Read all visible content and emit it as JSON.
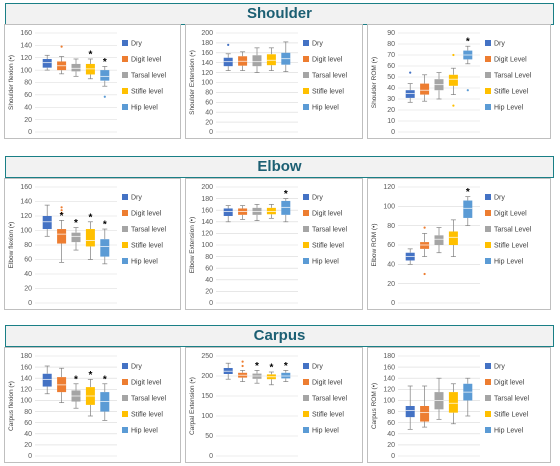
{
  "colors": {
    "dry": "#4472c4",
    "digit": "#ed7d31",
    "tarsal": "#a5a5a5",
    "stifle": "#ffc000",
    "hip": "#5b9bd5",
    "banner_text": "#1c5f73",
    "banner_border": "#1a7f86",
    "star": "#000000"
  },
  "sections": [
    {
      "title": "Shoulder",
      "charts": [
        {
          "type": "box",
          "ylabel": "Shoulder flexion (•)",
          "ylim": [
            0,
            160
          ],
          "ticks": [
            0,
            20,
            40,
            60,
            80,
            100,
            120,
            140,
            160
          ],
          "legend": [
            "Dry",
            "Digit level",
            "Tarsal level",
            "Stifle level",
            "Hip level"
          ],
          "series": [
            {
              "q1": 104,
              "median": 112,
              "q3": 118,
              "min": 100,
              "max": 124,
              "outliers": [],
              "star": false
            },
            {
              "q1": 100,
              "median": 107,
              "q3": 114,
              "min": 94,
              "max": 122,
              "outliers": [
                138
              ],
              "star": false
            },
            {
              "q1": 98,
              "median": 103,
              "q3": 110,
              "min": 90,
              "max": 118,
              "outliers": [],
              "star": false
            },
            {
              "q1": 93,
              "median": 102,
              "q3": 110,
              "min": 86,
              "max": 118,
              "outliers": [],
              "star": true
            },
            {
              "q1": 83,
              "median": 90,
              "q3": 100,
              "min": 74,
              "max": 106,
              "outliers": [
                57
              ],
              "star": true
            }
          ]
        },
        {
          "type": "box",
          "ylabel": "Shoulder Extension (•)",
          "ylim": [
            0,
            200
          ],
          "ticks": [
            0,
            20,
            40,
            60,
            80,
            100,
            120,
            140,
            160,
            180,
            200
          ],
          "legend": [
            "Dry",
            "Digit level",
            "Tarsal level",
            "Stifle level",
            "Hip level"
          ],
          "series": [
            {
              "q1": 133,
              "median": 142,
              "q3": 150,
              "min": 124,
              "max": 158,
              "outliers": [
                176
              ],
              "star": false
            },
            {
              "q1": 134,
              "median": 143,
              "q3": 153,
              "min": 124,
              "max": 162,
              "outliers": [],
              "star": false
            },
            {
              "q1": 133,
              "median": 142,
              "q3": 155,
              "min": 120,
              "max": 170,
              "outliers": [],
              "star": false
            },
            {
              "q1": 135,
              "median": 145,
              "q3": 157,
              "min": 124,
              "max": 170,
              "outliers": [],
              "star": false
            },
            {
              "q1": 136,
              "median": 148,
              "q3": 160,
              "min": 122,
              "max": 182,
              "outliers": [],
              "star": false
            }
          ]
        },
        {
          "type": "box",
          "ylabel": "Shoulder ROM (•)",
          "ylim": [
            0,
            90
          ],
          "ticks": [
            0,
            10,
            20,
            30,
            40,
            50,
            60,
            70,
            80,
            90
          ],
          "legend": [
            "Dry",
            "Digit Level",
            "Tarsal Level",
            "Stifle Level",
            "Hip Level"
          ],
          "series": [
            {
              "q1": 31,
              "median": 35,
              "q3": 38,
              "min": 27,
              "max": 44,
              "outliers": [
                54
              ],
              "star": false
            },
            {
              "q1": 34,
              "median": 38,
              "q3": 44,
              "min": 28,
              "max": 52,
              "outliers": [],
              "star": false
            },
            {
              "q1": 38,
              "median": 43,
              "q3": 48,
              "min": 30,
              "max": 54,
              "outliers": [],
              "star": false
            },
            {
              "q1": 42,
              "median": 48,
              "q3": 52,
              "min": 34,
              "max": 58,
              "outliers": [
                24,
                70
              ],
              "star": false
            },
            {
              "q1": 66,
              "median": 70,
              "q3": 74,
              "min": 62,
              "max": 78,
              "outliers": [
                38
              ],
              "star": true
            }
          ]
        }
      ]
    },
    {
      "title": "Elbow",
      "charts": [
        {
          "type": "box",
          "ylabel": "Elbow flexion (•)",
          "ylim": [
            0,
            160
          ],
          "ticks": [
            0,
            20,
            40,
            60,
            80,
            100,
            120,
            140,
            160
          ],
          "legend": [
            "Dry",
            "Digit level",
            "Tarsal level",
            "Stifle level",
            "Hip level"
          ],
          "series": [
            {
              "q1": 102,
              "median": 112,
              "q3": 120,
              "min": 92,
              "max": 135,
              "outliers": [],
              "star": false
            },
            {
              "q1": 82,
              "median": 95,
              "q3": 102,
              "min": 56,
              "max": 114,
              "outliers": [
                124,
                128,
                132
              ],
              "star": true
            },
            {
              "q1": 84,
              "median": 92,
              "q3": 97,
              "min": 73,
              "max": 104,
              "outliers": [],
              "star": true
            },
            {
              "q1": 78,
              "median": 86,
              "q3": 102,
              "min": 60,
              "max": 112,
              "outliers": [],
              "star": true
            },
            {
              "q1": 64,
              "median": 78,
              "q3": 88,
              "min": 54,
              "max": 102,
              "outliers": [],
              "star": true
            }
          ]
        },
        {
          "type": "box",
          "ylabel": "Elbow Extension (•)",
          "ylim": [
            0,
            200
          ],
          "ticks": [
            0,
            20,
            40,
            60,
            80,
            100,
            120,
            140,
            160,
            180,
            200
          ],
          "legend": [
            "Dry",
            "Digit level",
            "Tarsal level",
            "Stifle level",
            "Hip level"
          ],
          "series": [
            {
              "q1": 150,
              "median": 158,
              "q3": 163,
              "min": 140,
              "max": 168,
              "outliers": [],
              "star": false
            },
            {
              "q1": 152,
              "median": 158,
              "q3": 163,
              "min": 144,
              "max": 168,
              "outliers": [],
              "star": false
            },
            {
              "q1": 152,
              "median": 158,
              "q3": 164,
              "min": 142,
              "max": 170,
              "outliers": [],
              "star": false
            },
            {
              "q1": 153,
              "median": 158,
              "q3": 164,
              "min": 146,
              "max": 170,
              "outliers": [],
              "star": false
            },
            {
              "q1": 152,
              "median": 165,
              "q3": 176,
              "min": 140,
              "max": 180,
              "outliers": [],
              "star": true
            }
          ]
        },
        {
          "type": "box",
          "ylabel": "Elbow ROM (•)",
          "ylim": [
            0,
            120
          ],
          "ticks": [
            0,
            20,
            40,
            60,
            80,
            100,
            120
          ],
          "legend": [
            "Dry",
            "Digit Level",
            "Tarsal Level",
            "Stifle Level",
            "Hip Level"
          ],
          "series": [
            {
              "q1": 44,
              "median": 48,
              "q3": 52,
              "min": 40,
              "max": 56,
              "outliers": [],
              "star": false
            },
            {
              "q1": 56,
              "median": 60,
              "q3": 63,
              "min": 48,
              "max": 72,
              "outliers": [
                30,
                78
              ],
              "star": false
            },
            {
              "q1": 60,
              "median": 66,
              "q3": 70,
              "min": 52,
              "max": 78,
              "outliers": [],
              "star": false
            },
            {
              "q1": 60,
              "median": 68,
              "q3": 74,
              "min": 48,
              "max": 86,
              "outliers": [],
              "star": false
            },
            {
              "q1": 88,
              "median": 98,
              "q3": 106,
              "min": 80,
              "max": 110,
              "outliers": [],
              "star": true
            }
          ]
        }
      ]
    },
    {
      "title": "Carpus",
      "charts": [
        {
          "type": "box",
          "ylabel": "Carpus flexion (•)",
          "ylim": [
            0,
            180
          ],
          "ticks": [
            0,
            20,
            40,
            60,
            80,
            100,
            120,
            140,
            160,
            180
          ],
          "legend": [
            "Dry",
            "Digit level",
            "Tarsal level",
            "Stifle level",
            "Hip level"
          ],
          "series": [
            {
              "q1": 125,
              "median": 138,
              "q3": 148,
              "min": 112,
              "max": 162,
              "outliers": [],
              "star": false
            },
            {
              "q1": 115,
              "median": 128,
              "q3": 142,
              "min": 96,
              "max": 158,
              "outliers": [],
              "star": false
            },
            {
              "q1": 98,
              "median": 108,
              "q3": 118,
              "min": 86,
              "max": 130,
              "outliers": [],
              "star": true
            },
            {
              "q1": 92,
              "median": 108,
              "q3": 124,
              "min": 72,
              "max": 138,
              "outliers": [],
              "star": true
            },
            {
              "q1": 80,
              "median": 98,
              "q3": 115,
              "min": 64,
              "max": 130,
              "outliers": [],
              "star": true
            }
          ]
        },
        {
          "type": "box",
          "ylabel": "Carpal Extension (•)",
          "ylim": [
            0,
            250
          ],
          "ticks": [
            0,
            50,
            100,
            150,
            200,
            250
          ],
          "legend": [
            "Dry",
            "Digit level",
            "Tarsal level",
            "Stifle level",
            "Hip level"
          ],
          "series": [
            {
              "q1": 205,
              "median": 212,
              "q3": 220,
              "min": 192,
              "max": 232,
              "outliers": [],
              "star": false
            },
            {
              "q1": 196,
              "median": 202,
              "q3": 208,
              "min": 186,
              "max": 214,
              "outliers": [
                225,
                236
              ],
              "star": false
            },
            {
              "q1": 193,
              "median": 200,
              "q3": 206,
              "min": 182,
              "max": 214,
              "outliers": [],
              "star": true
            },
            {
              "q1": 192,
              "median": 198,
              "q3": 204,
              "min": 178,
              "max": 210,
              "outliers": [],
              "star": true
            },
            {
              "q1": 194,
              "median": 200,
              "q3": 208,
              "min": 186,
              "max": 214,
              "outliers": [],
              "star": true
            }
          ]
        },
        {
          "type": "box",
          "ylabel": "Carpus ROM (•)",
          "ylim": [
            0,
            180
          ],
          "ticks": [
            0,
            20,
            40,
            60,
            80,
            100,
            120,
            140,
            160,
            180
          ],
          "legend": [
            "Dry",
            "Digit level",
            "Tarsal level",
            "Stifle Level",
            "Hip Level"
          ],
          "series": [
            {
              "q1": 70,
              "median": 82,
              "q3": 90,
              "min": 48,
              "max": 126,
              "outliers": [],
              "star": false
            },
            {
              "q1": 62,
              "median": 78,
              "q3": 90,
              "min": 52,
              "max": 126,
              "outliers": [],
              "star": false
            },
            {
              "q1": 84,
              "median": 100,
              "q3": 115,
              "min": 66,
              "max": 140,
              "outliers": [],
              "star": false
            },
            {
              "q1": 78,
              "median": 95,
              "q3": 115,
              "min": 58,
              "max": 130,
              "outliers": [],
              "star": false
            },
            {
              "q1": 100,
              "median": 115,
              "q3": 130,
              "min": 72,
              "max": 140,
              "outliers": [],
              "star": false
            }
          ]
        }
      ]
    }
  ],
  "chart_data": [
    {
      "type": "box",
      "title": "Shoulder",
      "charts": [
        "Shoulder flexion (•)",
        "Shoulder Extension (•)",
        "Shoulder ROM (•)"
      ]
    },
    {
      "type": "box",
      "title": "Elbow",
      "charts": [
        "Elbow flexion (•)",
        "Elbow Extension (•)",
        "Elbow ROM (•)"
      ]
    },
    {
      "type": "box",
      "title": "Carpus",
      "charts": [
        "Carpus flexion (•)",
        "Carpal Extension (•)",
        "Carpus ROM (•)"
      ]
    }
  ],
  "star_symbol": "*"
}
